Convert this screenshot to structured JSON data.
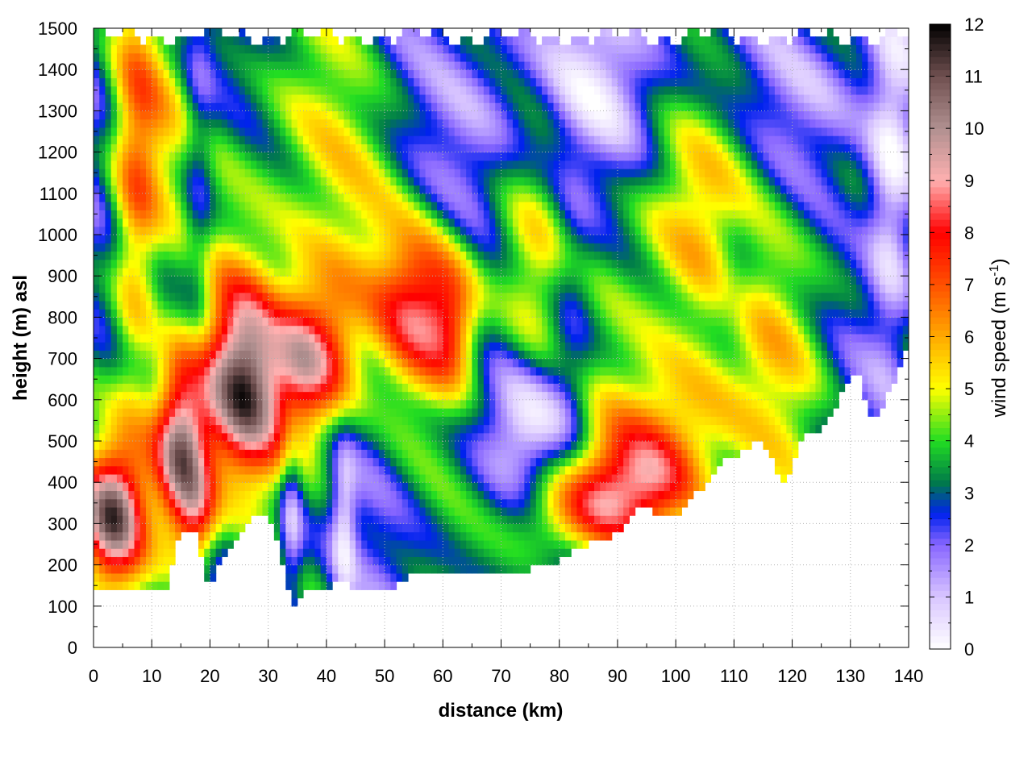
{
  "chart_data": {
    "type": "heatmap",
    "title": "",
    "xlabel": "distance (km)",
    "ylabel": "height (m) asl",
    "colorbar_label_main": "wind speed (m s",
    "colorbar_label_sup": "-1",
    "colorbar_label_close": ")",
    "xlim": [
      0,
      140
    ],
    "ylim": [
      0,
      1500
    ],
    "zlim": [
      0,
      12
    ],
    "x_ticks": [
      0,
      10,
      20,
      30,
      40,
      50,
      60,
      70,
      80,
      90,
      100,
      110,
      120,
      130,
      140
    ],
    "y_ticks": [
      0,
      100,
      200,
      300,
      400,
      500,
      600,
      700,
      800,
      900,
      1000,
      1100,
      1200,
      1300,
      1400,
      1500
    ],
    "z_ticks": [
      0,
      1,
      2,
      3,
      4,
      5,
      6,
      7,
      8,
      9,
      10,
      11,
      12
    ],
    "grid": true,
    "colormap_stops": [
      {
        "value": 0,
        "color": "#ffffff"
      },
      {
        "value": 1,
        "color": "#d9c6ff"
      },
      {
        "value": 2,
        "color": "#8866ff"
      },
      {
        "value": 2.6,
        "color": "#0022ee"
      },
      {
        "value": 3.2,
        "color": "#007a4a"
      },
      {
        "value": 4,
        "color": "#22dd22"
      },
      {
        "value": 5,
        "color": "#ffff00"
      },
      {
        "value": 6,
        "color": "#ffaa00"
      },
      {
        "value": 7,
        "color": "#ff5000"
      },
      {
        "value": 8,
        "color": "#ff0000"
      },
      {
        "value": 9,
        "color": "#ffb0b0"
      },
      {
        "value": 10,
        "color": "#b09090"
      },
      {
        "value": 11,
        "color": "#705050"
      },
      {
        "value": 12,
        "color": "#000000"
      }
    ],
    "terrain_height": {
      "x": [
        0,
        1,
        2,
        4,
        6,
        8,
        10,
        11,
        12,
        13,
        14,
        16,
        18,
        19,
        20,
        22,
        24,
        26,
        28,
        30,
        32,
        33,
        34,
        35,
        36,
        38,
        40,
        42,
        44,
        46,
        48,
        50,
        52,
        54,
        56,
        58,
        60,
        62,
        64,
        66,
        68,
        70,
        72,
        74,
        76,
        78,
        80,
        82,
        84,
        86,
        88,
        90,
        92,
        94,
        96,
        98,
        100,
        102,
        104,
        106,
        108,
        110,
        112,
        114,
        116,
        118,
        119,
        120,
        122,
        124,
        126,
        128,
        130,
        131,
        132,
        133,
        134,
        136,
        138,
        140
      ],
      "h": [
        140,
        130,
        150,
        150,
        145,
        150,
        140,
        135,
        130,
        150,
        250,
        290,
        280,
        160,
        150,
        210,
        250,
        290,
        320,
        330,
        250,
        170,
        100,
        90,
        150,
        150,
        140,
        170,
        150,
        140,
        140,
        140,
        150,
        170,
        175,
        175,
        180,
        180,
        175,
        175,
        180,
        190,
        190,
        185,
        200,
        200,
        210,
        230,
        240,
        255,
        260,
        280,
        310,
        350,
        330,
        310,
        320,
        360,
        380,
        420,
        450,
        460,
        480,
        500,
        470,
        410,
        400,
        450,
        510,
        520,
        560,
        600,
        650,
        680,
        630,
        580,
        550,
        600,
        650,
        750
      ]
    }
  }
}
